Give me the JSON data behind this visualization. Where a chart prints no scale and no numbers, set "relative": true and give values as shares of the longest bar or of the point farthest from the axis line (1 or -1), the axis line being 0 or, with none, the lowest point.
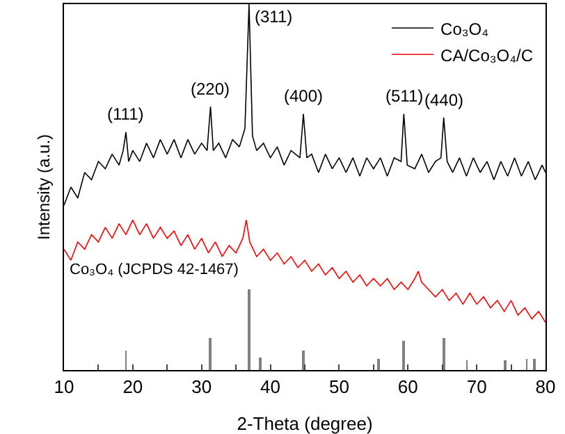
{
  "chart_data": {
    "type": "line",
    "relative": true,
    "xlabel": "2-Theta (degree)",
    "ylabel": "Intensity (a.u.)",
    "xlim": [
      10,
      80
    ],
    "xticks": [
      10,
      {
        "value": 15,
        "label": null
      },
      20,
      {
        "value": 25,
        "label": null
      },
      30,
      {
        "value": 35,
        "label": null
      },
      40,
      {
        "value": 45,
        "label": null
      },
      50,
      {
        "value": 55,
        "label": null
      },
      60,
      {
        "value": 65,
        "label": null
      },
      70,
      {
        "value": 75,
        "label": null
      },
      80
    ],
    "tick_labels": "x",
    "legend": "top right",
    "marker": "none",
    "line_style": "solid",
    "series": [
      {
        "name": "Co₃O₄",
        "color": "#000000",
        "x": [
          10,
          11,
          12,
          13,
          14,
          15,
          16,
          17,
          18,
          18.6,
          19,
          19.4,
          20,
          21,
          22,
          23,
          24,
          25,
          26,
          27,
          28,
          29,
          30,
          30.8,
          31.3,
          31.7,
          32.5,
          33.5,
          34.5,
          35.5,
          36.3,
          36.9,
          37.4,
          38,
          39,
          40,
          41,
          42,
          43,
          44.3,
          44.8,
          45.3,
          46,
          47,
          48,
          49,
          50,
          51,
          52,
          53,
          54,
          55,
          56,
          57,
          58,
          59,
          59.4,
          59.9,
          61,
          62,
          63,
          64,
          64.8,
          65.2,
          65.7,
          66.5,
          67.5,
          68.5,
          69.5,
          70.5,
          71.5,
          72.5,
          73.5,
          74.5,
          75.5,
          76.5,
          77.5,
          78.5,
          79.5,
          80
        ],
        "values": [
          0.45,
          0.5,
          0.47,
          0.54,
          0.52,
          0.57,
          0.55,
          0.59,
          0.56,
          0.6,
          0.65,
          0.57,
          0.6,
          0.57,
          0.62,
          0.58,
          0.63,
          0.59,
          0.63,
          0.58,
          0.63,
          0.59,
          0.62,
          0.6,
          0.72,
          0.6,
          0.62,
          0.58,
          0.63,
          0.61,
          0.66,
          1.0,
          0.64,
          0.6,
          0.62,
          0.58,
          0.61,
          0.56,
          0.6,
          0.58,
          0.7,
          0.58,
          0.59,
          0.54,
          0.59,
          0.55,
          0.58,
          0.54,
          0.58,
          0.53,
          0.58,
          0.55,
          0.58,
          0.53,
          0.58,
          0.57,
          0.7,
          0.56,
          0.55,
          0.59,
          0.54,
          0.57,
          0.58,
          0.69,
          0.57,
          0.54,
          0.58,
          0.53,
          0.58,
          0.54,
          0.57,
          0.52,
          0.57,
          0.53,
          0.58,
          0.53,
          0.57,
          0.52,
          0.56,
          0.54
        ]
      },
      {
        "name": "CA/Co₃O₄/C",
        "color": "#ff0000",
        "x": [
          10,
          11,
          12,
          13,
          14,
          15,
          16,
          17,
          18,
          19,
          20,
          21,
          22,
          23,
          24,
          25,
          26,
          27,
          28,
          29,
          30,
          31,
          32,
          33,
          34,
          35,
          36,
          36.5,
          37,
          38,
          39,
          40,
          41,
          42,
          43,
          44,
          45,
          46,
          47,
          48,
          49,
          50,
          51,
          52,
          53,
          54,
          55,
          56,
          57,
          58,
          59,
          60,
          61,
          61.5,
          62,
          63,
          64,
          65,
          66,
          67,
          68,
          69,
          70,
          71,
          72,
          73,
          74,
          75,
          76,
          77,
          78,
          79,
          80
        ],
        "values": [
          0.33,
          0.3,
          0.35,
          0.33,
          0.37,
          0.35,
          0.39,
          0.36,
          0.4,
          0.37,
          0.41,
          0.37,
          0.4,
          0.36,
          0.39,
          0.36,
          0.38,
          0.34,
          0.37,
          0.33,
          0.36,
          0.32,
          0.35,
          0.31,
          0.34,
          0.32,
          0.36,
          0.41,
          0.35,
          0.31,
          0.33,
          0.3,
          0.32,
          0.29,
          0.31,
          0.28,
          0.3,
          0.27,
          0.29,
          0.26,
          0.28,
          0.25,
          0.27,
          0.24,
          0.26,
          0.23,
          0.25,
          0.23,
          0.25,
          0.22,
          0.24,
          0.22,
          0.25,
          0.27,
          0.24,
          0.22,
          0.2,
          0.22,
          0.19,
          0.21,
          0.18,
          0.21,
          0.18,
          0.2,
          0.17,
          0.19,
          0.16,
          0.19,
          0.15,
          0.17,
          0.14,
          0.16,
          0.13
        ]
      },
      {
        "type": "bar",
        "color": "#808080",
        "x": [
          19.0,
          31.3,
          36.85,
          38.5,
          44.8,
          55.7,
          59.4,
          65.2,
          68.6,
          74.1,
          77.3,
          78.4
        ],
        "values": [
          0.055,
          0.087,
          0.22,
          0.035,
          0.055,
          0.03,
          0.08,
          0.087,
          0.025,
          0.025,
          0.03,
          0.03
        ]
      }
    ],
    "annotations": [
      {
        "text": "(111)",
        "x": 19,
        "y": 0.65
      },
      {
        "text": "(220)",
        "x": 31.3,
        "y": 0.72
      },
      {
        "text": "(311)",
        "x": 36.9,
        "y": 1.0
      },
      {
        "text": "(400)",
        "x": 44.8,
        "y": 0.7
      },
      {
        "text": "(511)",
        "x": 59.4,
        "y": 0.7
      },
      {
        "text": "(440)",
        "x": 65.2,
        "y": 0.69
      },
      "Co₃O₄ (JCPDS 42-1467)"
    ]
  }
}
